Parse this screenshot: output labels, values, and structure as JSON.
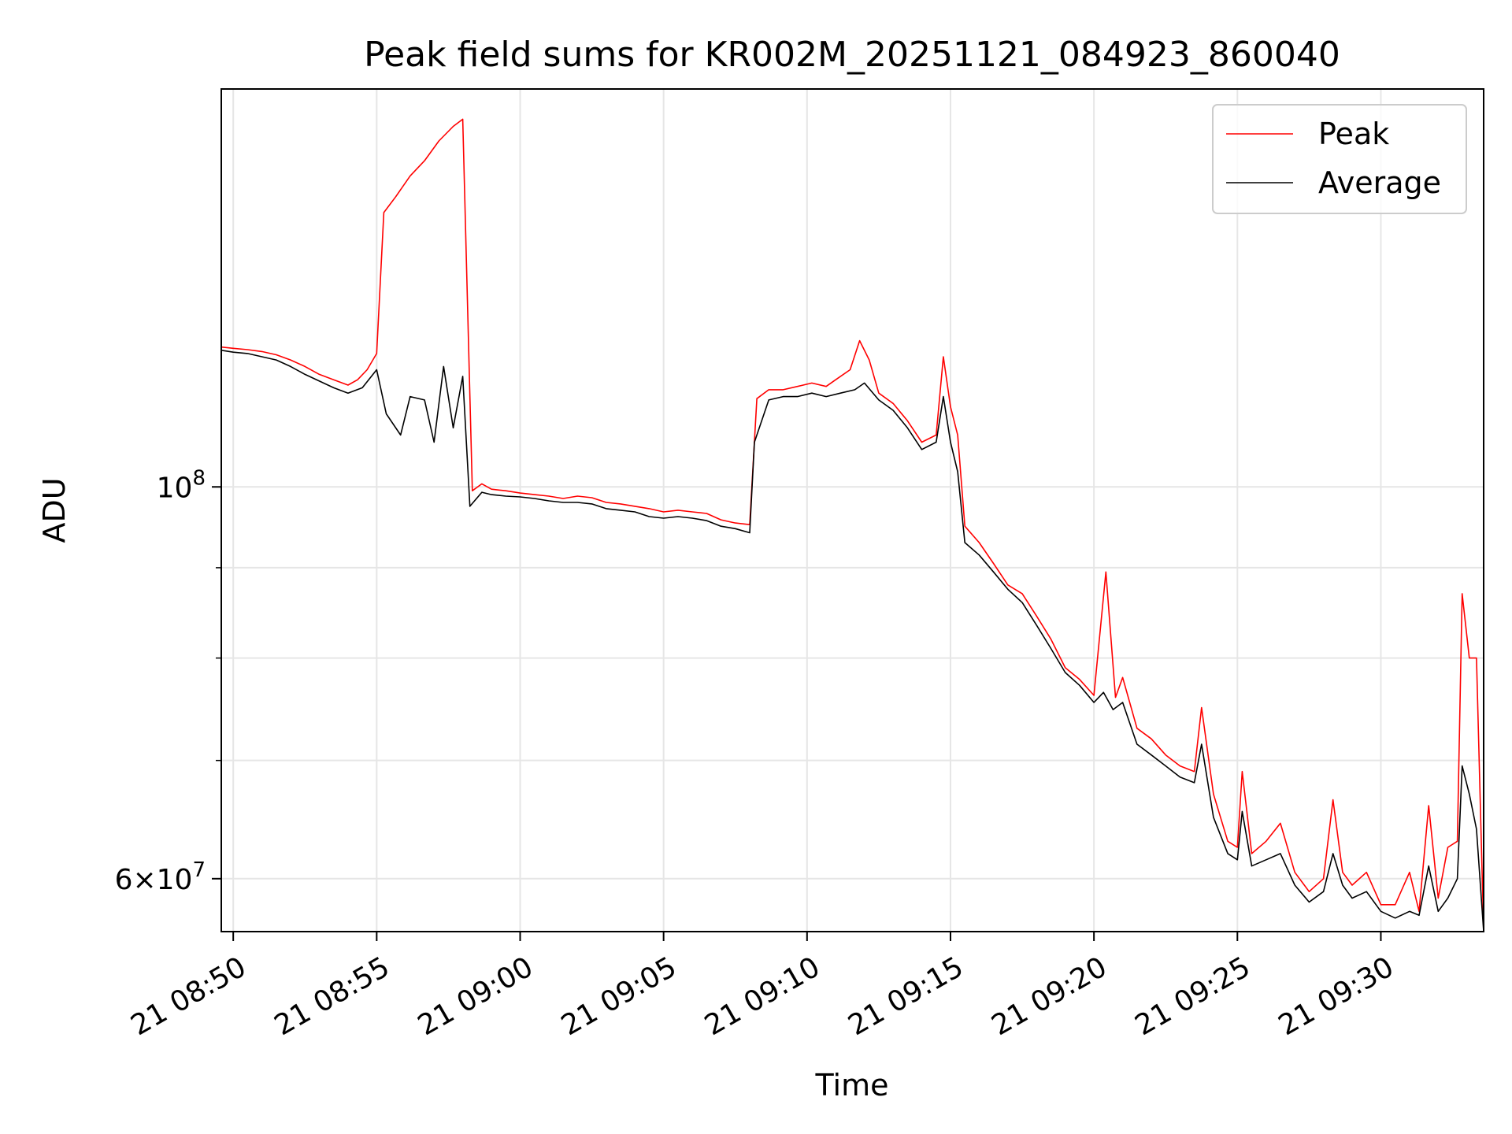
{
  "chart_data": {
    "type": "line",
    "title": "Peak field sums for KR002M_20251121_084923_860040",
    "xlabel": "Time",
    "ylabel": "ADU",
    "yscale": "log",
    "grid": true,
    "legend_position": "top-right",
    "xlim": [
      "2025-11-21T08:49:35",
      "2025-11-21T09:33:35"
    ],
    "ylim": [
      56000000,
      168000000
    ],
    "x_ticks": [
      {
        "t": "2025-11-21T08:50:00",
        "label": "21 08:50"
      },
      {
        "t": "2025-11-21T08:55:00",
        "label": "21 08:55"
      },
      {
        "t": "2025-11-21T09:00:00",
        "label": "21 09:00"
      },
      {
        "t": "2025-11-21T09:05:00",
        "label": "21 09:05"
      },
      {
        "t": "2025-11-21T09:10:00",
        "label": "21 09:10"
      },
      {
        "t": "2025-11-21T09:15:00",
        "label": "21 09:15"
      },
      {
        "t": "2025-11-21T09:20:00",
        "label": "21 09:20"
      },
      {
        "t": "2025-11-21T09:25:00",
        "label": "21 09:25"
      },
      {
        "t": "2025-11-21T09:30:00",
        "label": "21 09:30"
      }
    ],
    "y_major_ticks": [
      {
        "value": 60000000,
        "base": "6",
        "exp": "7"
      },
      {
        "value": 100000000,
        "base": "",
        "exp": "8"
      }
    ],
    "y_minor_ticks": [
      70000000,
      80000000,
      90000000
    ],
    "series": [
      {
        "name": "Peak",
        "color": "#ff0000",
        "points": [
          [
            "2025-11-21T08:49:35",
            120000000.0
          ],
          [
            "2025-11-21T08:50:00",
            119800000.0
          ],
          [
            "2025-11-21T08:50:30",
            119600000.0
          ],
          [
            "2025-11-21T08:51:00",
            119300000.0
          ],
          [
            "2025-11-21T08:51:30",
            118800000.0
          ],
          [
            "2025-11-21T08:52:00",
            118000000.0
          ],
          [
            "2025-11-21T08:52:30",
            117000000.0
          ],
          [
            "2025-11-21T08:53:00",
            115800000.0
          ],
          [
            "2025-11-21T08:53:30",
            115000000.0
          ],
          [
            "2025-11-21T08:54:00",
            114200000.0
          ],
          [
            "2025-11-21T08:54:20",
            115000000.0
          ],
          [
            "2025-11-21T08:54:40",
            116500000.0
          ],
          [
            "2025-11-21T08:55:00",
            119000000.0
          ],
          [
            "2025-11-21T08:55:15",
            143000000.0
          ],
          [
            "2025-11-21T08:55:40",
            146000000.0
          ],
          [
            "2025-11-21T08:56:10",
            150000000.0
          ],
          [
            "2025-11-21T08:56:40",
            153000000.0
          ],
          [
            "2025-11-21T08:57:10",
            157000000.0
          ],
          [
            "2025-11-21T08:57:40",
            160000000.0
          ],
          [
            "2025-11-21T08:58:00",
            161500000.0
          ],
          [
            "2025-11-21T08:58:20",
            99500000.0
          ],
          [
            "2025-11-21T08:58:40",
            100400000.0
          ],
          [
            "2025-11-21T08:59:00",
            99700000.0
          ],
          [
            "2025-11-21T08:59:30",
            99500000.0
          ],
          [
            "2025-11-21T09:00:00",
            99200000.0
          ],
          [
            "2025-11-21T09:00:30",
            99000000.0
          ],
          [
            "2025-11-21T09:01:00",
            98800000.0
          ],
          [
            "2025-11-21T09:01:30",
            98500000.0
          ],
          [
            "2025-11-21T09:02:00",
            98800000.0
          ],
          [
            "2025-11-21T09:02:30",
            98600000.0
          ],
          [
            "2025-11-21T09:03:00",
            98000000.0
          ],
          [
            "2025-11-21T09:03:30",
            97800000.0
          ],
          [
            "2025-11-21T09:04:00",
            97500000.0
          ],
          [
            "2025-11-21T09:04:30",
            97200000.0
          ],
          [
            "2025-11-21T09:05:00",
            96800000.0
          ],
          [
            "2025-11-21T09:05:30",
            97000000.0
          ],
          [
            "2025-11-21T09:06:00",
            96800000.0
          ],
          [
            "2025-11-21T09:06:30",
            96600000.0
          ],
          [
            "2025-11-21T09:07:00",
            95800000.0
          ],
          [
            "2025-11-21T09:07:30",
            95400000.0
          ],
          [
            "2025-11-21T09:08:00",
            95200000.0
          ],
          [
            "2025-11-21T09:08:15",
            112200000.0
          ],
          [
            "2025-11-21T09:08:40",
            113500000.0
          ],
          [
            "2025-11-21T09:09:10",
            113500000.0
          ],
          [
            "2025-11-21T09:09:40",
            114000000.0
          ],
          [
            "2025-11-21T09:10:10",
            114500000.0
          ],
          [
            "2025-11-21T09:10:40",
            114000000.0
          ],
          [
            "2025-11-21T09:11:00",
            115000000.0
          ],
          [
            "2025-11-21T09:11:30",
            116500000.0
          ],
          [
            "2025-11-21T09:11:50",
            121000000.0
          ],
          [
            "2025-11-21T09:12:10",
            118000000.0
          ],
          [
            "2025-11-21T09:12:30",
            113000000.0
          ],
          [
            "2025-11-21T09:13:00",
            111500000.0
          ],
          [
            "2025-11-21T09:13:30",
            109000000.0
          ],
          [
            "2025-11-21T09:14:00",
            106000000.0
          ],
          [
            "2025-11-21T09:14:30",
            107000000.0
          ],
          [
            "2025-11-21T09:14:45",
            118500000.0
          ],
          [
            "2025-11-21T09:15:00",
            111000000.0
          ],
          [
            "2025-11-21T09:15:15",
            107000000.0
          ],
          [
            "2025-11-21T09:15:30",
            95000000.0
          ],
          [
            "2025-11-21T09:16:00",
            93000000.0
          ],
          [
            "2025-11-21T09:16:30",
            90500000.0
          ],
          [
            "2025-11-21T09:17:00",
            88000000.0
          ],
          [
            "2025-11-21T09:17:30",
            87000000.0
          ],
          [
            "2025-11-21T09:18:00",
            84500000.0
          ],
          [
            "2025-11-21T09:18:30",
            82000000.0
          ],
          [
            "2025-11-21T09:19:00",
            79000000.0
          ],
          [
            "2025-11-21T09:19:30",
            77800000.0
          ],
          [
            "2025-11-21T09:20:00",
            76200000.0
          ],
          [
            "2025-11-21T09:20:25",
            89500000.0
          ],
          [
            "2025-11-21T09:20:45",
            76000000.0
          ],
          [
            "2025-11-21T09:21:00",
            78000000.0
          ],
          [
            "2025-11-21T09:21:30",
            73000000.0
          ],
          [
            "2025-11-21T09:22:00",
            72000000.0
          ],
          [
            "2025-11-21T09:22:30",
            70500000.0
          ],
          [
            "2025-11-21T09:23:00",
            69500000.0
          ],
          [
            "2025-11-21T09:23:30",
            69000000.0
          ],
          [
            "2025-11-21T09:23:45",
            75000000.0
          ],
          [
            "2025-11-21T09:24:10",
            67000000.0
          ],
          [
            "2025-11-21T09:24:40",
            63000000.0
          ],
          [
            "2025-11-21T09:25:00",
            62500000.0
          ],
          [
            "2025-11-21T09:25:10",
            69000000.0
          ],
          [
            "2025-11-21T09:25:30",
            62000000.0
          ],
          [
            "2025-11-21T09:26:00",
            63000000.0
          ],
          [
            "2025-11-21T09:26:30",
            64500000.0
          ],
          [
            "2025-11-21T09:27:00",
            60500000.0
          ],
          [
            "2025-11-21T09:27:30",
            59000000.0
          ],
          [
            "2025-11-21T09:28:00",
            60000000.0
          ],
          [
            "2025-11-21T09:28:20",
            66500000.0
          ],
          [
            "2025-11-21T09:28:40",
            60500000.0
          ],
          [
            "2025-11-21T09:29:00",
            59500000.0
          ],
          [
            "2025-11-21T09:29:30",
            60500000.0
          ],
          [
            "2025-11-21T09:30:00",
            58000000.0
          ],
          [
            "2025-11-21T09:30:30",
            58000000.0
          ],
          [
            "2025-11-21T09:31:00",
            60500000.0
          ],
          [
            "2025-11-21T09:31:20",
            57500000.0
          ],
          [
            "2025-11-21T09:31:40",
            66000000.0
          ],
          [
            "2025-11-21T09:32:00",
            58500000.0
          ],
          [
            "2025-11-21T09:32:20",
            62500000.0
          ],
          [
            "2025-11-21T09:32:40",
            63000000.0
          ],
          [
            "2025-11-21T09:32:50",
            87000000.0
          ],
          [
            "2025-11-21T09:33:05",
            80000000.0
          ],
          [
            "2025-11-21T09:33:20",
            80000000.0
          ],
          [
            "2025-11-21T09:33:35",
            56000000.0
          ]
        ]
      },
      {
        "name": "Average",
        "color": "#000000",
        "points": [
          [
            "2025-11-21T08:49:35",
            119500000.0
          ],
          [
            "2025-11-21T08:50:00",
            119200000.0
          ],
          [
            "2025-11-21T08:50:30",
            119000000.0
          ],
          [
            "2025-11-21T08:51:00",
            118500000.0
          ],
          [
            "2025-11-21T08:51:30",
            118000000.0
          ],
          [
            "2025-11-21T08:52:00",
            117000000.0
          ],
          [
            "2025-11-21T08:52:30",
            115800000.0
          ],
          [
            "2025-11-21T08:53:00",
            114800000.0
          ],
          [
            "2025-11-21T08:53:30",
            113800000.0
          ],
          [
            "2025-11-21T08:54:00",
            113000000.0
          ],
          [
            "2025-11-21T08:54:30",
            113800000.0
          ],
          [
            "2025-11-21T08:55:00",
            116500000.0
          ],
          [
            "2025-11-21T08:55:20",
            110000000.0
          ],
          [
            "2025-11-21T08:55:50",
            107000000.0
          ],
          [
            "2025-11-21T08:56:10",
            112500000.0
          ],
          [
            "2025-11-21T08:56:40",
            112000000.0
          ],
          [
            "2025-11-21T08:57:00",
            106000000.0
          ],
          [
            "2025-11-21T08:57:20",
            117000000.0
          ],
          [
            "2025-11-21T08:57:40",
            108000000.0
          ],
          [
            "2025-11-21T08:58:00",
            115500000.0
          ],
          [
            "2025-11-21T08:58:15",
            97500000.0
          ],
          [
            "2025-11-21T08:58:40",
            99300000.0
          ],
          [
            "2025-11-21T08:59:00",
            99000000.0
          ],
          [
            "2025-11-21T08:59:30",
            98800000.0
          ],
          [
            "2025-11-21T09:00:00",
            98700000.0
          ],
          [
            "2025-11-21T09:00:30",
            98500000.0
          ],
          [
            "2025-11-21T09:01:00",
            98200000.0
          ],
          [
            "2025-11-21T09:01:30",
            98000000.0
          ],
          [
            "2025-11-21T09:02:00",
            98000000.0
          ],
          [
            "2025-11-21T09:02:30",
            97800000.0
          ],
          [
            "2025-11-21T09:03:00",
            97200000.0
          ],
          [
            "2025-11-21T09:03:30",
            97000000.0
          ],
          [
            "2025-11-21T09:04:00",
            96800000.0
          ],
          [
            "2025-11-21T09:04:30",
            96200000.0
          ],
          [
            "2025-11-21T09:05:00",
            96000000.0
          ],
          [
            "2025-11-21T09:05:30",
            96200000.0
          ],
          [
            "2025-11-21T09:06:00",
            96000000.0
          ],
          [
            "2025-11-21T09:06:30",
            95700000.0
          ],
          [
            "2025-11-21T09:07:00",
            95000000.0
          ],
          [
            "2025-11-21T09:07:30",
            94700000.0
          ],
          [
            "2025-11-21T09:08:00",
            94200000.0
          ],
          [
            "2025-11-21T09:08:10",
            106000000.0
          ],
          [
            "2025-11-21T09:08:40",
            112000000.0
          ],
          [
            "2025-11-21T09:09:10",
            112500000.0
          ],
          [
            "2025-11-21T09:09:40",
            112500000.0
          ],
          [
            "2025-11-21T09:10:10",
            113000000.0
          ],
          [
            "2025-11-21T09:10:40",
            112500000.0
          ],
          [
            "2025-11-21T09:11:10",
            113000000.0
          ],
          [
            "2025-11-21T09:11:40",
            113500000.0
          ],
          [
            "2025-11-21T09:12:00",
            114500000.0
          ],
          [
            "2025-11-21T09:12:30",
            112000000.0
          ],
          [
            "2025-11-21T09:13:00",
            110500000.0
          ],
          [
            "2025-11-21T09:13:30",
            108000000.0
          ],
          [
            "2025-11-21T09:14:00",
            105000000.0
          ],
          [
            "2025-11-21T09:14:30",
            106000000.0
          ],
          [
            "2025-11-21T09:14:45",
            112500000.0
          ],
          [
            "2025-11-21T09:15:00",
            106000000.0
          ],
          [
            "2025-11-21T09:15:15",
            102000000.0
          ],
          [
            "2025-11-21T09:15:30",
            93000000.0
          ],
          [
            "2025-11-21T09:16:00",
            91500000.0
          ],
          [
            "2025-11-21T09:16:30",
            89500000.0
          ],
          [
            "2025-11-21T09:17:00",
            87500000.0
          ],
          [
            "2025-11-21T09:17:30",
            86000000.0
          ],
          [
            "2025-11-21T09:18:00",
            83500000.0
          ],
          [
            "2025-11-21T09:18:30",
            81000000.0
          ],
          [
            "2025-11-21T09:19:00",
            78500000.0
          ],
          [
            "2025-11-21T09:19:30",
            77200000.0
          ],
          [
            "2025-11-21T09:20:00",
            75500000.0
          ],
          [
            "2025-11-21T09:20:20",
            76500000.0
          ],
          [
            "2025-11-21T09:20:40",
            74800000.0
          ],
          [
            "2025-11-21T09:21:00",
            75500000.0
          ],
          [
            "2025-11-21T09:21:30",
            71500000.0
          ],
          [
            "2025-11-21T09:22:00",
            70500000.0
          ],
          [
            "2025-11-21T09:22:30",
            69500000.0
          ],
          [
            "2025-11-21T09:23:00",
            68500000.0
          ],
          [
            "2025-11-21T09:23:30",
            68000000.0
          ],
          [
            "2025-11-21T09:23:45",
            71500000.0
          ],
          [
            "2025-11-21T09:24:10",
            65000000.0
          ],
          [
            "2025-11-21T09:24:40",
            62000000.0
          ],
          [
            "2025-11-21T09:25:00",
            61500000.0
          ],
          [
            "2025-11-21T09:25:10",
            65500000.0
          ],
          [
            "2025-11-21T09:25:30",
            61000000.0
          ],
          [
            "2025-11-21T09:26:00",
            61500000.0
          ],
          [
            "2025-11-21T09:26:30",
            62000000.0
          ],
          [
            "2025-11-21T09:27:00",
            59500000.0
          ],
          [
            "2025-11-21T09:27:30",
            58200000.0
          ],
          [
            "2025-11-21T09:28:00",
            59000000.0
          ],
          [
            "2025-11-21T09:28:20",
            62000000.0
          ],
          [
            "2025-11-21T09:28:40",
            59500000.0
          ],
          [
            "2025-11-21T09:29:00",
            58500000.0
          ],
          [
            "2025-11-21T09:29:30",
            59000000.0
          ],
          [
            "2025-11-21T09:30:00",
            57500000.0
          ],
          [
            "2025-11-21T09:30:30",
            57000000.0
          ],
          [
            "2025-11-21T09:31:00",
            57500000.0
          ],
          [
            "2025-11-21T09:31:20",
            57200000.0
          ],
          [
            "2025-11-21T09:31:40",
            61000000.0
          ],
          [
            "2025-11-21T09:32:00",
            57500000.0
          ],
          [
            "2025-11-21T09:32:20",
            58500000.0
          ],
          [
            "2025-11-21T09:32:40",
            60000000.0
          ],
          [
            "2025-11-21T09:32:50",
            69500000.0
          ],
          [
            "2025-11-21T09:33:05",
            67000000.0
          ],
          [
            "2025-11-21T09:33:20",
            64000000.0
          ],
          [
            "2025-11-21T09:33:35",
            56000000.0
          ]
        ]
      }
    ]
  }
}
